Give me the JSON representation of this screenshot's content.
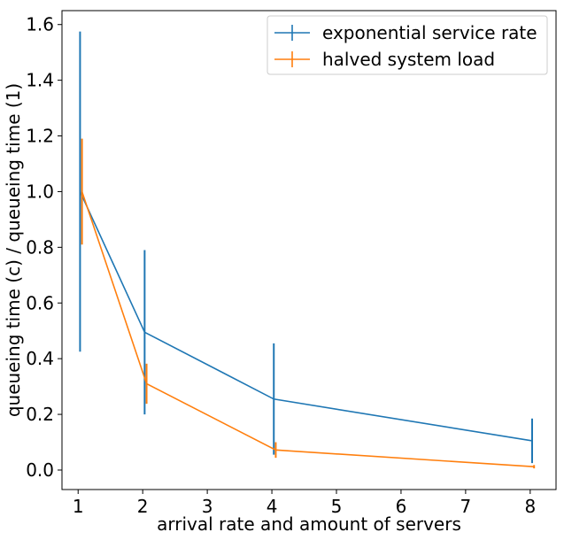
{
  "chart_data": {
    "type": "line",
    "xlabel": "arrival rate and amount of servers",
    "ylabel": "queueing time (c) / queueing time (1)",
    "xlim": [
      0.75,
      8.4
    ],
    "ylim": [
      -0.07,
      1.65
    ],
    "xticks": [
      1,
      2,
      3,
      4,
      5,
      6,
      7,
      8
    ],
    "yticks": [
      0.0,
      0.2,
      0.4,
      0.6,
      0.8,
      1.0,
      1.2,
      1.4,
      1.6
    ],
    "ytick_labels": [
      "0.0",
      "0.2",
      "0.4",
      "0.6",
      "0.8",
      "1.0",
      "1.2",
      "1.4",
      "1.6"
    ],
    "grid": false,
    "legend_position": "top-right",
    "series": [
      {
        "name": "exponential service rate",
        "color": "#1f77b4",
        "x": [
          1.03,
          2.03,
          4.03,
          8.03
        ],
        "y": [
          1.0,
          0.495,
          0.255,
          0.105
        ],
        "yerr": [
          0.575,
          0.295,
          0.2,
          0.08
        ]
      },
      {
        "name": "halved system load",
        "color": "#ff7f0e",
        "x": [
          1.06,
          2.06,
          4.06,
          8.06
        ],
        "y": [
          1.0,
          0.31,
          0.072,
          0.012
        ],
        "yerr": [
          0.19,
          0.072,
          0.028,
          0.006
        ]
      }
    ]
  }
}
